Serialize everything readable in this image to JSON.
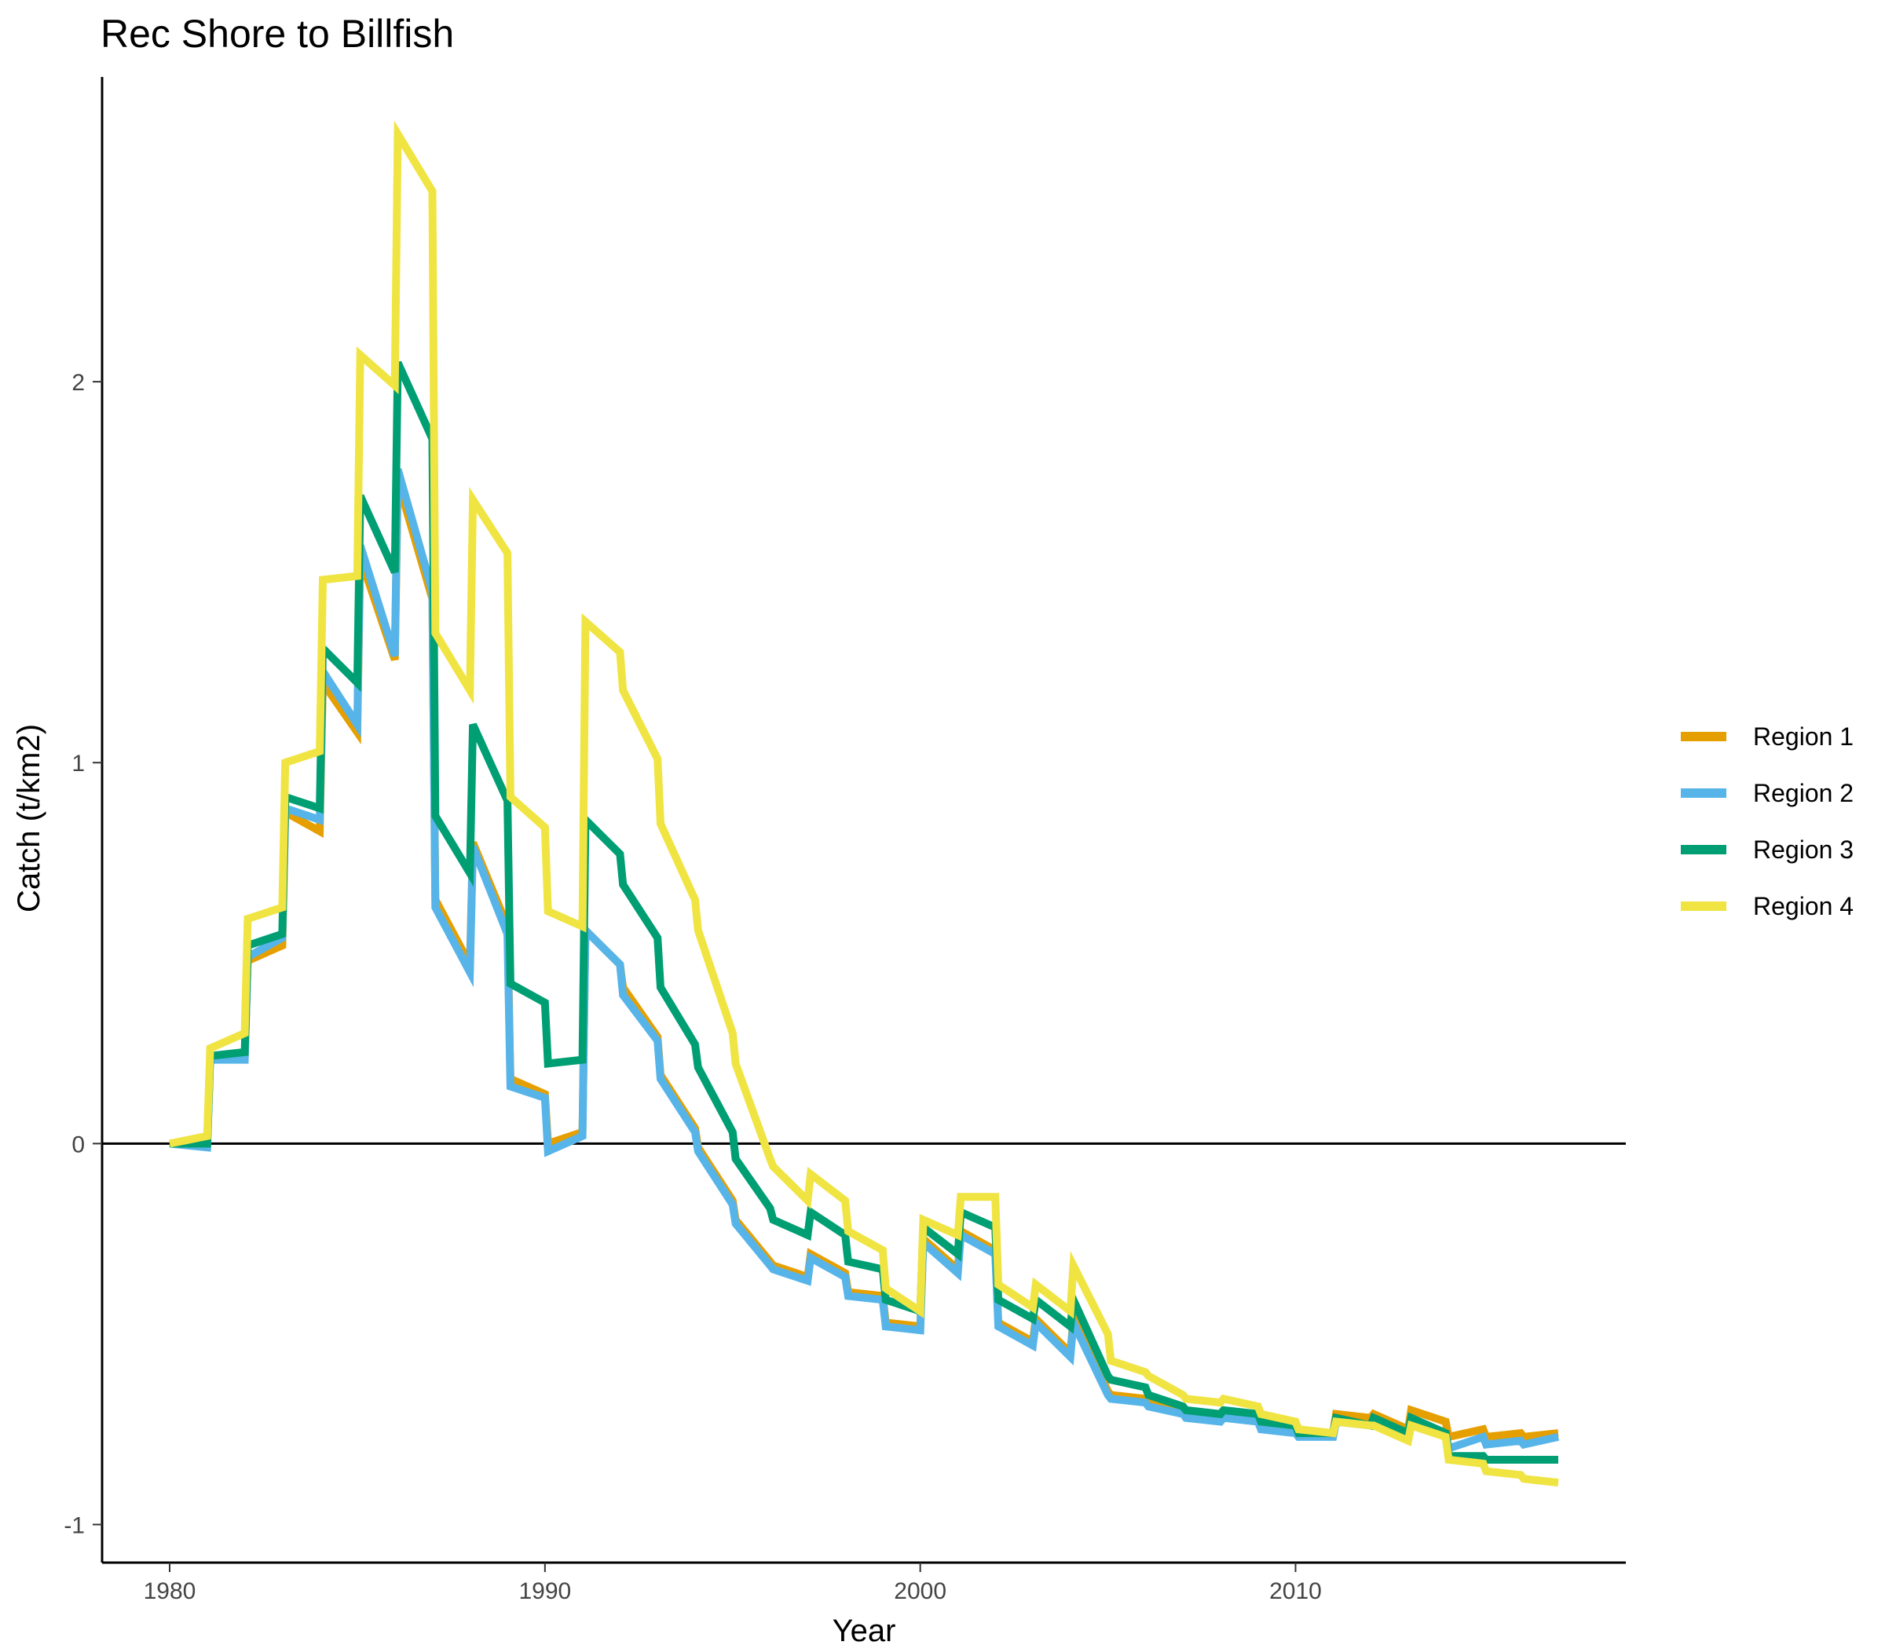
{
  "chart_data": {
    "type": "line",
    "title": "Rec Shore to Billfish",
    "xlabel": "Year",
    "ylabel": "Catch (t/km2)",
    "xlim": [
      1978.2,
      2018.8
    ],
    "ylim": [
      -1.1,
      2.8
    ],
    "x_ticks": [
      1980,
      1990,
      2000,
      2010
    ],
    "y_ticks": [
      -1,
      0,
      1,
      2
    ],
    "x_tick_labels": [
      "1980",
      "1990",
      "2000",
      "2010"
    ],
    "y_tick_labels": [
      "-1",
      "0",
      "1",
      "2"
    ],
    "zero_line": true,
    "grid": false,
    "legend_position": "right",
    "series": [
      {
        "name": "Region 1",
        "color": "#E69F00",
        "points": [
          [
            1980,
            0
          ],
          [
            1981,
            0
          ],
          [
            1981.08,
            0.23
          ],
          [
            1982,
            0.23
          ],
          [
            1982.08,
            0.48
          ],
          [
            1983,
            0.52
          ],
          [
            1983.08,
            0.87
          ],
          [
            1984,
            0.82
          ],
          [
            1984.08,
            1.21
          ],
          [
            1985,
            1.08
          ],
          [
            1985.08,
            1.54
          ],
          [
            1986,
            1.27
          ],
          [
            1986.08,
            1.74
          ],
          [
            1987,
            1.43
          ],
          [
            1987.08,
            0.64
          ],
          [
            1988,
            0.47
          ],
          [
            1988.08,
            0.79
          ],
          [
            1989,
            0.57
          ],
          [
            1989.08,
            0.17
          ],
          [
            1990,
            0.13
          ],
          [
            1990.08,
            0
          ],
          [
            1991,
            0.03
          ],
          [
            1991.08,
            0.56
          ],
          [
            1992,
            0.47
          ],
          [
            1992.08,
            0.41
          ],
          [
            1993,
            0.28
          ],
          [
            1993.08,
            0.18
          ],
          [
            1994,
            0.04
          ],
          [
            1994.08,
            -0.01
          ],
          [
            1995,
            -0.15
          ],
          [
            1995.08,
            -0.2
          ],
          [
            1996,
            -0.31
          ],
          [
            1996.08,
            -0.32
          ],
          [
            1997,
            -0.35
          ],
          [
            1997.08,
            -0.29
          ],
          [
            1998,
            -0.34
          ],
          [
            1998.08,
            -0.39
          ],
          [
            1999,
            -0.4
          ],
          [
            1999.08,
            -0.47
          ],
          [
            2000,
            -0.48
          ],
          [
            2000.08,
            -0.25
          ],
          [
            2001,
            -0.33
          ],
          [
            2001.08,
            -0.23
          ],
          [
            2002,
            -0.28
          ],
          [
            2002.08,
            -0.47
          ],
          [
            2003,
            -0.52
          ],
          [
            2003.08,
            -0.46
          ],
          [
            2004,
            -0.55
          ],
          [
            2004.08,
            -0.46
          ],
          [
            2005,
            -0.65
          ],
          [
            2005.08,
            -0.66
          ],
          [
            2006,
            -0.67
          ],
          [
            2006.08,
            -0.68
          ],
          [
            2007,
            -0.7
          ],
          [
            2007.08,
            -0.71
          ],
          [
            2008,
            -0.72
          ],
          [
            2008.08,
            -0.71
          ],
          [
            2009,
            -0.72
          ],
          [
            2009.08,
            -0.74
          ],
          [
            2010,
            -0.75
          ],
          [
            2010.08,
            -0.76
          ],
          [
            2011,
            -0.76
          ],
          [
            2011.08,
            -0.71
          ],
          [
            2012,
            -0.72
          ],
          [
            2012.08,
            -0.71
          ],
          [
            2013,
            -0.75
          ],
          [
            2013.08,
            -0.7
          ],
          [
            2014,
            -0.73
          ],
          [
            2014.08,
            -0.77
          ],
          [
            2015,
            -0.75
          ],
          [
            2015.08,
            -0.77
          ],
          [
            2016,
            -0.76
          ],
          [
            2016.08,
            -0.77
          ],
          [
            2017,
            -0.76
          ]
        ]
      },
      {
        "name": "Region 2",
        "color": "#56B4E9",
        "points": [
          [
            1980,
            0
          ],
          [
            1981,
            -0.01
          ],
          [
            1981.08,
            0.22
          ],
          [
            1982,
            0.22
          ],
          [
            1982.08,
            0.49
          ],
          [
            1983,
            0.54
          ],
          [
            1983.08,
            0.88
          ],
          [
            1984,
            0.85
          ],
          [
            1984.08,
            1.24
          ],
          [
            1985,
            1.1
          ],
          [
            1985.08,
            1.57
          ],
          [
            1986,
            1.28
          ],
          [
            1986.08,
            1.77
          ],
          [
            1987,
            1.45
          ],
          [
            1987.08,
            0.62
          ],
          [
            1988,
            0.45
          ],
          [
            1988.08,
            0.78
          ],
          [
            1989,
            0.55
          ],
          [
            1989.08,
            0.15
          ],
          [
            1990,
            0.12
          ],
          [
            1990.08,
            -0.02
          ],
          [
            1991,
            0.02
          ],
          [
            1991.08,
            0.56
          ],
          [
            1992,
            0.47
          ],
          [
            1992.08,
            0.39
          ],
          [
            1993,
            0.27
          ],
          [
            1993.08,
            0.17
          ],
          [
            1994,
            0.03
          ],
          [
            1994.08,
            -0.02
          ],
          [
            1995,
            -0.16
          ],
          [
            1995.08,
            -0.21
          ],
          [
            1996,
            -0.32
          ],
          [
            1996.08,
            -0.33
          ],
          [
            1997,
            -0.36
          ],
          [
            1997.08,
            -0.3
          ],
          [
            1998,
            -0.35
          ],
          [
            1998.08,
            -0.4
          ],
          [
            1999,
            -0.41
          ],
          [
            1999.08,
            -0.48
          ],
          [
            2000,
            -0.49
          ],
          [
            2000.08,
            -0.26
          ],
          [
            2001,
            -0.34
          ],
          [
            2001.08,
            -0.24
          ],
          [
            2002,
            -0.29
          ],
          [
            2002.08,
            -0.48
          ],
          [
            2003,
            -0.53
          ],
          [
            2003.08,
            -0.47
          ],
          [
            2004,
            -0.56
          ],
          [
            2004.08,
            -0.47
          ],
          [
            2005,
            -0.66
          ],
          [
            2005.08,
            -0.67
          ],
          [
            2006,
            -0.68
          ],
          [
            2006.08,
            -0.69
          ],
          [
            2007,
            -0.71
          ],
          [
            2007.08,
            -0.72
          ],
          [
            2008,
            -0.73
          ],
          [
            2008.08,
            -0.72
          ],
          [
            2009,
            -0.73
          ],
          [
            2009.08,
            -0.75
          ],
          [
            2010,
            -0.76
          ],
          [
            2010.08,
            -0.77
          ],
          [
            2011,
            -0.77
          ],
          [
            2011.08,
            -0.73
          ],
          [
            2012,
            -0.74
          ],
          [
            2012.08,
            -0.73
          ],
          [
            2013,
            -0.76
          ],
          [
            2013.08,
            -0.72
          ],
          [
            2014,
            -0.76
          ],
          [
            2014.08,
            -0.8
          ],
          [
            2015,
            -0.77
          ],
          [
            2015.08,
            -0.79
          ],
          [
            2016,
            -0.78
          ],
          [
            2016.08,
            -0.79
          ],
          [
            2017,
            -0.77
          ]
        ]
      },
      {
        "name": "Region 3",
        "color": "#009E73",
        "points": [
          [
            1980,
            0
          ],
          [
            1981,
            0
          ],
          [
            1981.08,
            0.23
          ],
          [
            1982,
            0.24
          ],
          [
            1982.08,
            0.52
          ],
          [
            1983,
            0.55
          ],
          [
            1983.08,
            0.91
          ],
          [
            1984,
            0.88
          ],
          [
            1984.08,
            1.3
          ],
          [
            1985,
            1.21
          ],
          [
            1985.08,
            1.7
          ],
          [
            1986,
            1.5
          ],
          [
            1986.08,
            2.05
          ],
          [
            1987,
            1.85
          ],
          [
            1987.08,
            0.86
          ],
          [
            1988,
            0.71
          ],
          [
            1988.08,
            1.1
          ],
          [
            1989,
            0.9
          ],
          [
            1989.08,
            0.42
          ],
          [
            1990,
            0.37
          ],
          [
            1990.08,
            0.21
          ],
          [
            1991,
            0.22
          ],
          [
            1991.08,
            0.85
          ],
          [
            1992,
            0.76
          ],
          [
            1992.08,
            0.68
          ],
          [
            1993,
            0.54
          ],
          [
            1993.08,
            0.41
          ],
          [
            1994,
            0.26
          ],
          [
            1994.08,
            0.2
          ],
          [
            1995,
            0.03
          ],
          [
            1995.08,
            -0.04
          ],
          [
            1996,
            -0.17
          ],
          [
            1996.08,
            -0.2
          ],
          [
            1997,
            -0.24
          ],
          [
            1997.08,
            -0.18
          ],
          [
            1998,
            -0.24
          ],
          [
            1998.08,
            -0.31
          ],
          [
            1999,
            -0.33
          ],
          [
            1999.08,
            -0.41
          ],
          [
            2000,
            -0.44
          ],
          [
            2000.08,
            -0.22
          ],
          [
            2001,
            -0.29
          ],
          [
            2001.08,
            -0.18
          ],
          [
            2002,
            -0.22
          ],
          [
            2002.08,
            -0.41
          ],
          [
            2003,
            -0.46
          ],
          [
            2003.08,
            -0.41
          ],
          [
            2004,
            -0.48
          ],
          [
            2004.08,
            -0.41
          ],
          [
            2005,
            -0.61
          ],
          [
            2005.08,
            -0.62
          ],
          [
            2006,
            -0.64
          ],
          [
            2006.08,
            -0.66
          ],
          [
            2007,
            -0.69
          ],
          [
            2007.08,
            -0.7
          ],
          [
            2008,
            -0.71
          ],
          [
            2008.08,
            -0.7
          ],
          [
            2009,
            -0.71
          ],
          [
            2009.08,
            -0.73
          ],
          [
            2010,
            -0.74
          ],
          [
            2010.08,
            -0.76
          ],
          [
            2011,
            -0.76
          ],
          [
            2011.08,
            -0.72
          ],
          [
            2012,
            -0.74
          ],
          [
            2012.08,
            -0.72
          ],
          [
            2013,
            -0.76
          ],
          [
            2013.08,
            -0.72
          ],
          [
            2014,
            -0.76
          ],
          [
            2014.08,
            -0.82
          ],
          [
            2015,
            -0.82
          ],
          [
            2015.08,
            -0.83
          ],
          [
            2016,
            -0.83
          ],
          [
            2016.08,
            -0.83
          ],
          [
            2017,
            -0.83
          ]
        ]
      },
      {
        "name": "Region 4",
        "color": "#F0E442",
        "points": [
          [
            1980,
            0
          ],
          [
            1981,
            0.02
          ],
          [
            1981.08,
            0.25
          ],
          [
            1982,
            0.29
          ],
          [
            1982.08,
            0.59
          ],
          [
            1983,
            0.62
          ],
          [
            1983.08,
            1.0
          ],
          [
            1984,
            1.03
          ],
          [
            1984.08,
            1.48
          ],
          [
            1985,
            1.49
          ],
          [
            1985.08,
            2.07
          ],
          [
            1986,
            1.99
          ],
          [
            1986.08,
            2.65
          ],
          [
            1987,
            2.5
          ],
          [
            1987.08,
            1.34
          ],
          [
            1988,
            1.19
          ],
          [
            1988.08,
            1.69
          ],
          [
            1989,
            1.55
          ],
          [
            1989.08,
            0.91
          ],
          [
            1990,
            0.83
          ],
          [
            1990.08,
            0.61
          ],
          [
            1991,
            0.57
          ],
          [
            1991.08,
            1.37
          ],
          [
            1992,
            1.29
          ],
          [
            1992.08,
            1.19
          ],
          [
            1993,
            1.01
          ],
          [
            1993.08,
            0.84
          ],
          [
            1994,
            0.64
          ],
          [
            1994.08,
            0.56
          ],
          [
            1995,
            0.29
          ],
          [
            1995.08,
            0.21
          ],
          [
            1996,
            -0.04
          ],
          [
            1996.08,
            -0.06
          ],
          [
            1997,
            -0.15
          ],
          [
            1997.08,
            -0.08
          ],
          [
            1998,
            -0.15
          ],
          [
            1998.08,
            -0.23
          ],
          [
            1999,
            -0.28
          ],
          [
            1999.08,
            -0.38
          ],
          [
            2000,
            -0.44
          ],
          [
            2000.08,
            -0.2
          ],
          [
            2001,
            -0.24
          ],
          [
            2001.08,
            -0.14
          ],
          [
            2002,
            -0.14
          ],
          [
            2002.08,
            -0.37
          ],
          [
            2003,
            -0.43
          ],
          [
            2003.08,
            -0.37
          ],
          [
            2004,
            -0.44
          ],
          [
            2004.08,
            -0.32
          ],
          [
            2005,
            -0.5
          ],
          [
            2005.08,
            -0.57
          ],
          [
            2006,
            -0.6
          ],
          [
            2006.08,
            -0.61
          ],
          [
            2007,
            -0.66
          ],
          [
            2007.08,
            -0.67
          ],
          [
            2008,
            -0.68
          ],
          [
            2008.08,
            -0.67
          ],
          [
            2009,
            -0.69
          ],
          [
            2009.08,
            -0.71
          ],
          [
            2010,
            -0.73
          ],
          [
            2010.08,
            -0.75
          ],
          [
            2011,
            -0.76
          ],
          [
            2011.08,
            -0.73
          ],
          [
            2012,
            -0.74
          ],
          [
            2012.08,
            -0.74
          ],
          [
            2013,
            -0.78
          ],
          [
            2013.08,
            -0.74
          ],
          [
            2014,
            -0.77
          ],
          [
            2014.08,
            -0.83
          ],
          [
            2015,
            -0.84
          ],
          [
            2015.08,
            -0.86
          ],
          [
            2016,
            -0.87
          ],
          [
            2016.08,
            -0.88
          ],
          [
            2017,
            -0.89
          ]
        ]
      }
    ]
  }
}
